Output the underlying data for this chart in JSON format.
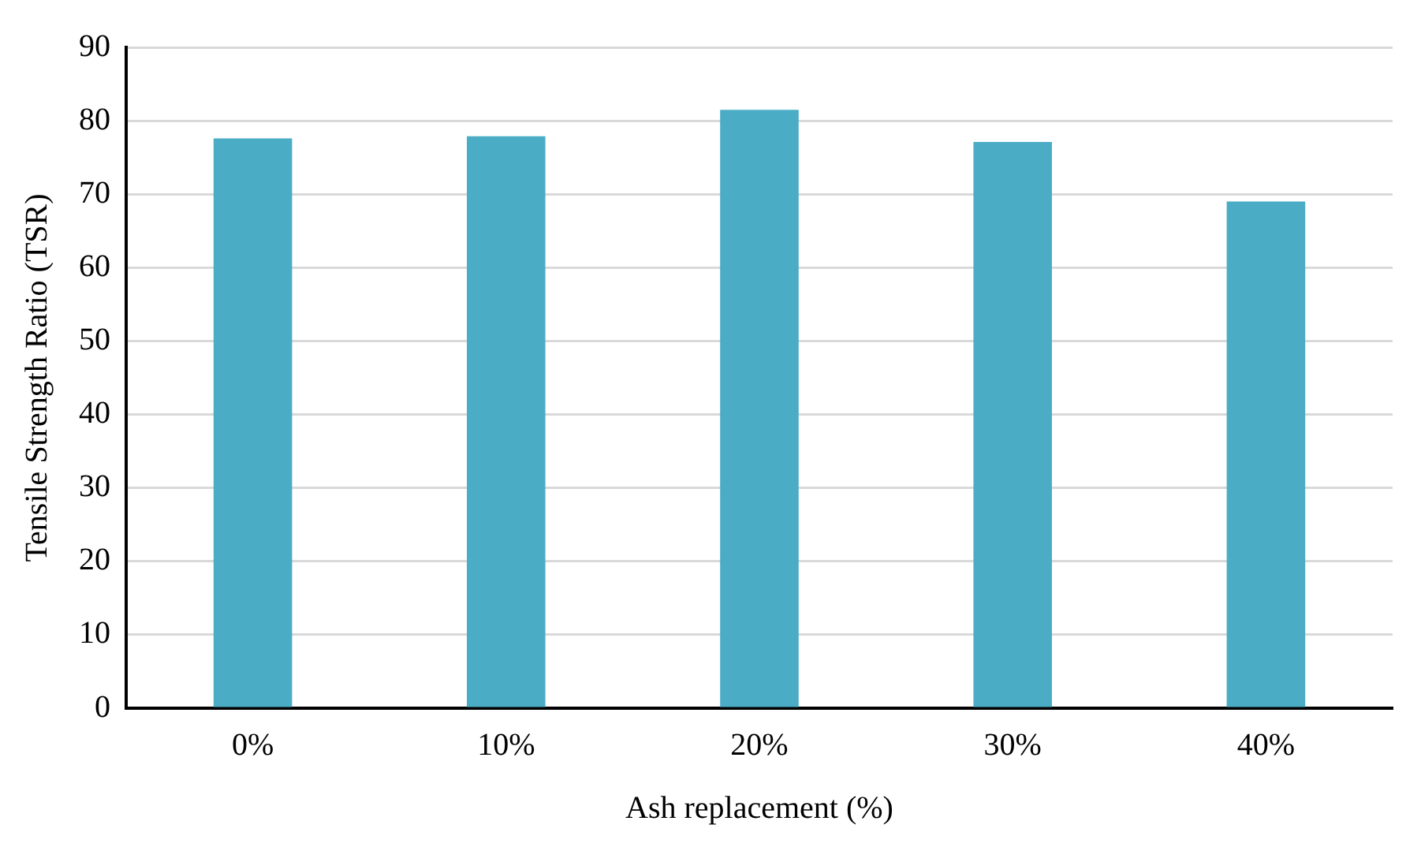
{
  "chart_data": {
    "type": "bar",
    "xlabel": "Ash replacement (%)",
    "ylabel": "Tensile Strength Ratio (TSR)",
    "categories": [
      "0%",
      "10%",
      "20%",
      "30%",
      "40%"
    ],
    "values": [
      77.6,
      77.9,
      81.5,
      77.1,
      69.0
    ],
    "color": "#4bacc6",
    "ylim": [
      0,
      90
    ],
    "yticks": [
      0,
      10,
      20,
      30,
      40,
      50,
      60,
      70,
      80,
      90
    ],
    "grid": "y",
    "legend": false
  }
}
